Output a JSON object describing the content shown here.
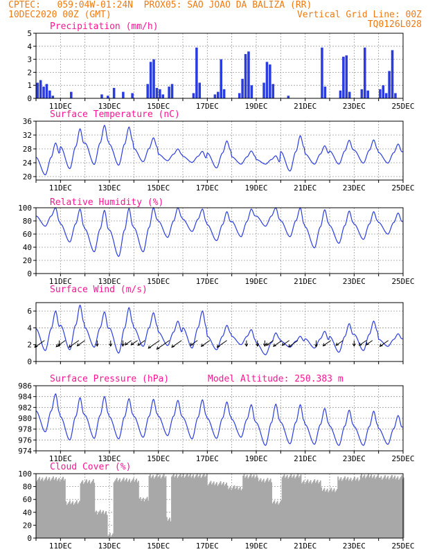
{
  "header": {
    "line1": "CPTEC:   059:04W-01:24N  PROX05: SAO JOAO DA BALIZA (RR)",
    "line2_left": "10DEC2020 00Z (GMT)",
    "line2_right": "Vertical Grid Line: 00Z",
    "line3_right": "TQ0126L028"
  },
  "colors": {
    "header": "#f07a10",
    "title": "#ff1493",
    "series": "#2a3ce0",
    "cloud": "#a8a8a8",
    "grid": "#9a9a9a",
    "wind_arrow": "#000000"
  },
  "x_axis": {
    "start": "10DEC",
    "days": 15,
    "tick_labels": [
      "11DEC",
      "13DEC",
      "15DEC",
      "17DEC",
      "19DEC",
      "21DEC",
      "23DEC",
      "25DEC"
    ]
  },
  "chart_data": [
    {
      "type": "bar",
      "title": "Precipitation (mm/h)",
      "ylim": [
        0,
        5
      ],
      "yticks": [
        0,
        1,
        2,
        3,
        4,
        5
      ],
      "grid": true,
      "points_per_day": 8,
      "values": [
        1.2,
        1.4,
        0.9,
        1.1,
        0.6,
        0.2,
        0,
        0,
        0,
        0,
        0,
        0.5,
        0,
        0,
        0,
        0,
        0,
        0,
        0,
        0,
        0,
        0.3,
        0,
        0.2,
        0,
        0.8,
        0,
        0,
        0.5,
        0,
        0,
        0.4,
        0,
        0,
        0,
        0,
        1.1,
        2.8,
        3.0,
        0.8,
        0.7,
        0.3,
        0,
        0.9,
        1.1,
        0,
        0,
        0,
        0,
        0,
        0,
        0.4,
        3.9,
        1.2,
        0,
        0,
        0,
        0,
        0.3,
        0.5,
        3.0,
        0.7,
        0,
        0,
        0,
        0,
        0.4,
        1.5,
        3.4,
        3.6,
        1.0,
        0,
        0,
        0,
        1.2,
        2.8,
        2.6,
        1.1,
        0,
        0,
        0,
        0,
        0.2,
        0,
        0,
        0,
        0,
        0,
        0,
        0,
        0,
        0,
        0,
        3.9,
        0.9,
        0,
        0,
        0,
        0,
        0.6,
        3.2,
        3.3,
        0.5,
        0,
        0,
        0,
        0.7,
        3.9,
        0.6,
        0,
        0,
        0,
        0.7,
        1.0,
        0.4,
        2.1,
        3.7,
        0.4,
        0,
        0
      ]
    },
    {
      "type": "line",
      "title": "Surface Temperature (nC)",
      "ylim": [
        19,
        36
      ],
      "yticks": [
        20,
        24,
        28,
        32,
        36
      ],
      "grid": true,
      "daily_min": [
        20.5,
        22.3,
        23.5,
        23.3,
        24.3,
        24.6,
        24.1,
        22.5,
        23.6,
        23.6,
        21.6,
        23.6,
        23.6,
        23.9,
        23.9
      ],
      "daily_max": [
        29.7,
        33.8,
        34.8,
        34.3,
        31.2,
        28.0,
        27.3,
        30.3,
        27.4,
        26.0,
        31.8,
        28.9,
        30.5,
        30.6,
        29.4
      ]
    },
    {
      "type": "line",
      "title": "Relative Humidity (%)",
      "ylim": [
        0,
        100
      ],
      "yticks": [
        0,
        20,
        40,
        60,
        80,
        100
      ],
      "grid": true,
      "daily_min": [
        72,
        48,
        33,
        26,
        33,
        55,
        64,
        50,
        56,
        72,
        56,
        39,
        46,
        52,
        60
      ],
      "daily_max": [
        100,
        98,
        96,
        99,
        100,
        100,
        98,
        94,
        98,
        100,
        100,
        97,
        95,
        94,
        92
      ]
    },
    {
      "type": "line",
      "title": "Surface Wind (m/s)",
      "ylim": [
        0,
        7
      ],
      "yticks": [
        0,
        2,
        4,
        6
      ],
      "grid": true,
      "daily_min": [
        1.3,
        1.4,
        1.7,
        1.0,
        1.8,
        1.9,
        1.6,
        1.4,
        2.0,
        0.8,
        1.7,
        1.6,
        1.1,
        1.3,
        1.8
      ],
      "daily_max": [
        6.0,
        6.7,
        5.9,
        6.4,
        5.8,
        4.8,
        6.0,
        4.3,
        3.8,
        3.4,
        3.0,
        3.6,
        4.5,
        4.8,
        3.3
      ],
      "arrows": [
        {
          "day": 0.35,
          "dir": "sw",
          "len": 1.0
        },
        {
          "day": 0.95,
          "dir": "s",
          "len": 0.4
        },
        {
          "day": 1.2,
          "dir": "sw",
          "len": 0.9
        },
        {
          "day": 1.75,
          "dir": "sw",
          "len": 1.0
        },
        {
          "day": 2.0,
          "dir": "sw",
          "len": 0.7
        },
        {
          "day": 2.5,
          "dir": "s",
          "len": 0.4
        },
        {
          "day": 3.05,
          "dir": "s",
          "len": 0.4
        },
        {
          "day": 3.55,
          "dir": "s",
          "len": 0.4
        },
        {
          "day": 3.9,
          "dir": "sw",
          "len": 0.5
        },
        {
          "day": 4.15,
          "dir": "sw",
          "len": 0.5
        },
        {
          "day": 4.45,
          "dir": "sw",
          "len": 0.6
        },
        {
          "day": 5.05,
          "dir": "sw",
          "len": 1.2
        },
        {
          "day": 5.45,
          "dir": "sw",
          "len": 1.4
        },
        {
          "day": 5.95,
          "dir": "sw",
          "len": 1.0
        },
        {
          "day": 6.6,
          "dir": "sw",
          "len": 0.6
        },
        {
          "day": 7.1,
          "dir": "sw",
          "len": 0.8
        },
        {
          "day": 7.8,
          "dir": "sw",
          "len": 1.0
        },
        {
          "day": 8.6,
          "dir": "s",
          "len": 0.4
        },
        {
          "day": 9.05,
          "dir": "s",
          "len": 0.4
        },
        {
          "day": 9.35,
          "dir": "s",
          "len": 0.4
        },
        {
          "day": 9.7,
          "dir": "sw",
          "len": 0.6
        },
        {
          "day": 10.05,
          "dir": "sw",
          "len": 0.8
        },
        {
          "day": 10.35,
          "dir": "sw",
          "len": 0.6
        },
        {
          "day": 10.7,
          "dir": "sw",
          "len": 0.9
        },
        {
          "day": 11.45,
          "dir": "s",
          "len": 0.5
        },
        {
          "day": 12.05,
          "dir": "sw",
          "len": 0.7
        },
        {
          "day": 12.55,
          "dir": "sw",
          "len": 0.6
        },
        {
          "day": 13.0,
          "dir": "s",
          "len": 0.4
        },
        {
          "day": 13.5,
          "dir": "sw",
          "len": 0.6
        },
        {
          "day": 13.75,
          "dir": "sw",
          "len": 0.5
        },
        {
          "day": 14.4,
          "dir": "sw",
          "len": 0.8
        }
      ]
    },
    {
      "type": "line",
      "title": "Surface Pressure (hPa)",
      "annotation": "Model Altitude: 250.383 m",
      "ylim": [
        974,
        986
      ],
      "yticks": [
        974,
        976,
        978,
        980,
        982,
        984,
        986
      ],
      "grid": true,
      "daily_min": [
        977.5,
        976.0,
        976.3,
        976.2,
        976.5,
        976.8,
        976.2,
        976.3,
        976.5,
        975.0,
        975.3,
        975.2,
        975.0,
        975.0,
        975.2
      ],
      "daily_max": [
        984.5,
        983.8,
        984.0,
        983.6,
        983.5,
        983.3,
        983.4,
        983.0,
        982.5,
        982.6,
        982.5,
        981.8,
        981.5,
        981.3,
        980.5
      ]
    },
    {
      "type": "area",
      "title": "Cloud Cover (%)",
      "ylim": [
        0,
        100
      ],
      "yticks": [
        0,
        20,
        40,
        60,
        80,
        100
      ],
      "grid": true,
      "segments": [
        {
          "from": 0.0,
          "to": 1.2,
          "value": 92
        },
        {
          "from": 1.2,
          "to": 1.8,
          "value": 55
        },
        {
          "from": 1.8,
          "to": 2.4,
          "value": 88
        },
        {
          "from": 2.4,
          "to": 2.9,
          "value": 40
        },
        {
          "from": 2.9,
          "to": 3.15,
          "value": 5
        },
        {
          "from": 3.15,
          "to": 4.2,
          "value": 90
        },
        {
          "from": 4.2,
          "to": 4.6,
          "value": 60
        },
        {
          "from": 4.6,
          "to": 5.3,
          "value": 96
        },
        {
          "from": 5.3,
          "to": 5.5,
          "value": 30
        },
        {
          "from": 5.5,
          "to": 7.0,
          "value": 97
        },
        {
          "from": 7.0,
          "to": 7.8,
          "value": 85
        },
        {
          "from": 7.8,
          "to": 8.4,
          "value": 78
        },
        {
          "from": 8.4,
          "to": 9.0,
          "value": 96
        },
        {
          "from": 9.0,
          "to": 9.6,
          "value": 90
        },
        {
          "from": 9.6,
          "to": 10.0,
          "value": 55
        },
        {
          "from": 10.0,
          "to": 10.8,
          "value": 96
        },
        {
          "from": 10.8,
          "to": 11.6,
          "value": 88
        },
        {
          "from": 11.6,
          "to": 12.3,
          "value": 75
        },
        {
          "from": 12.3,
          "to": 13.2,
          "value": 92
        },
        {
          "from": 13.2,
          "to": 14.0,
          "value": 96
        },
        {
          "from": 14.0,
          "to": 15.0,
          "value": 94
        }
      ]
    }
  ]
}
